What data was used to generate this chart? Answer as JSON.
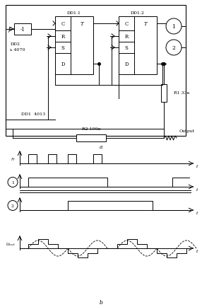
{
  "bg_color": "#ffffff",
  "fig_width": 2.86,
  "fig_height": 4.35,
  "dpi": 100,
  "title_a": "a",
  "title_b": "b",
  "label_f": "f",
  "label_inv": "-1",
  "label_dd2a": "DD2",
  "label_dd2b": "ь 4070",
  "label_dd11": "DD1.1",
  "label_dd12": "DD1.2",
  "label_dd1": "DD1  4013",
  "label_r1": "R1 33к",
  "label_r2": "R2 100к",
  "label_output": "Output",
  "label_fT": "fT",
  "label_1": "1",
  "label_2": "2",
  "label_uout": "Uout",
  "label_t": "t"
}
